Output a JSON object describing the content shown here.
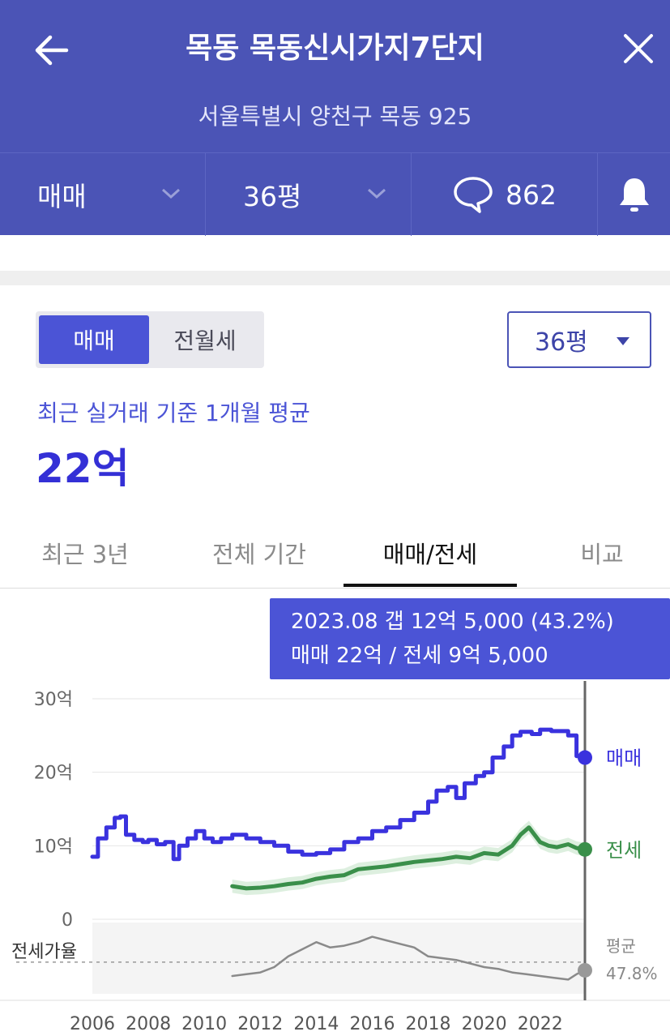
{
  "header": {
    "title": "목동 목동신시가지7단지",
    "address": "서울특별시 양천구 목동 925",
    "filter_trade": "매매",
    "filter_size": "36평",
    "comment_count": "862"
  },
  "panel": {
    "seg_active": "매매",
    "seg_inactive": "전월세",
    "size_select": "36평",
    "subtitle": "최근 실거래 기준 1개월 평균",
    "price": "22억"
  },
  "tabs": [
    "최근 3년",
    "전체 기간",
    "매매/전세",
    "비교"
  ],
  "active_tab": "매매/전세",
  "tooltip": {
    "line1": "2023.08  갭 12억 5,000 (43.2%)",
    "line2": "매매 22억 / 전세 9억 5,000"
  },
  "colors": {
    "header": "#4b54b6",
    "accent": "#4b54d6",
    "sale": "#3a32de",
    "jeonse": "#3a8f4a",
    "ratio": "#8a8a8a"
  },
  "chart_data": {
    "type": "line",
    "y_ticks": [
      "30억",
      "20억",
      "10억",
      "0"
    ],
    "ylim": [
      0,
      30
    ],
    "x_ticks": [
      "2006",
      "2008",
      "2010",
      "2012",
      "2014",
      "2016",
      "2018",
      "2020",
      "2022"
    ],
    "xlim": [
      2006.0,
      2023.6
    ],
    "series": [
      {
        "name": "매매",
        "unit": "억",
        "x": [
          2006.0,
          2006.2,
          2006.5,
          2006.8,
          2007.0,
          2007.2,
          2007.5,
          2007.8,
          2008.0,
          2008.3,
          2008.6,
          2008.9,
          2009.1,
          2009.4,
          2009.7,
          2010.0,
          2010.3,
          2010.6,
          2011.0,
          2011.5,
          2012.0,
          2012.5,
          2013.0,
          2013.5,
          2014.0,
          2014.5,
          2015.0,
          2015.5,
          2016.0,
          2016.5,
          2017.0,
          2017.5,
          2018.0,
          2018.3,
          2018.7,
          2019.0,
          2019.3,
          2019.7,
          2020.0,
          2020.3,
          2020.7,
          2021.0,
          2021.3,
          2021.7,
          2022.0,
          2022.4,
          2022.8,
          2023.0,
          2023.3,
          2023.6
        ],
        "y": [
          8.5,
          11.0,
          12.5,
          13.8,
          14.0,
          11.5,
          10.8,
          10.5,
          10.8,
          10.2,
          10.5,
          8.2,
          10.0,
          11.0,
          12.0,
          11.0,
          10.5,
          11.0,
          11.5,
          11.0,
          10.5,
          10.0,
          9.2,
          8.8,
          9.0,
          9.5,
          10.5,
          11.0,
          12.0,
          12.5,
          13.5,
          14.5,
          16.0,
          17.5,
          18.0,
          16.5,
          18.5,
          19.5,
          20.0,
          22.0,
          23.5,
          25.0,
          25.5,
          25.2,
          25.8,
          25.6,
          25.6,
          25.0,
          22.2,
          22.0
        ]
      },
      {
        "name": "전세",
        "unit": "억",
        "x": [
          2011.0,
          2011.5,
          2012.0,
          2012.5,
          2013.0,
          2013.5,
          2014.0,
          2014.5,
          2015.0,
          2015.5,
          2016.0,
          2016.5,
          2017.0,
          2017.5,
          2018.0,
          2018.5,
          2019.0,
          2019.5,
          2020.0,
          2020.5,
          2021.0,
          2021.3,
          2021.6,
          2022.0,
          2022.3,
          2022.6,
          2023.0,
          2023.3,
          2023.6
        ],
        "y": [
          4.5,
          4.2,
          4.3,
          4.5,
          4.8,
          5.0,
          5.5,
          5.8,
          6.0,
          6.8,
          7.0,
          7.2,
          7.5,
          7.8,
          8.0,
          8.2,
          8.5,
          8.3,
          9.0,
          8.8,
          10.0,
          11.5,
          12.5,
          10.5,
          10.0,
          9.8,
          10.2,
          9.7,
          9.5
        ]
      },
      {
        "name": "전세가율",
        "unit": "%",
        "x": [
          2011.0,
          2011.5,
          2012.0,
          2012.5,
          2013.0,
          2013.5,
          2014.0,
          2014.5,
          2015.0,
          2015.5,
          2016.0,
          2016.5,
          2017.0,
          2017.5,
          2018.0,
          2018.5,
          2019.0,
          2019.5,
          2020.0,
          2020.5,
          2021.0,
          2021.5,
          2022.0,
          2022.5,
          2023.0,
          2023.3,
          2023.6
        ],
        "y": [
          40,
          41,
          42,
          45,
          51,
          55,
          59,
          56,
          57,
          59,
          62,
          60,
          58,
          56,
          51,
          50,
          49,
          47,
          45,
          44,
          42,
          41,
          40,
          39,
          38,
          41,
          43.2
        ]
      }
    ],
    "legend": [
      "매매",
      "전세"
    ],
    "ratio_label": "전세가율",
    "avg_label": "평균",
    "avg_value": "47.8%",
    "avg_ratio": 47.8,
    "cursor_x": 2023.6
  }
}
